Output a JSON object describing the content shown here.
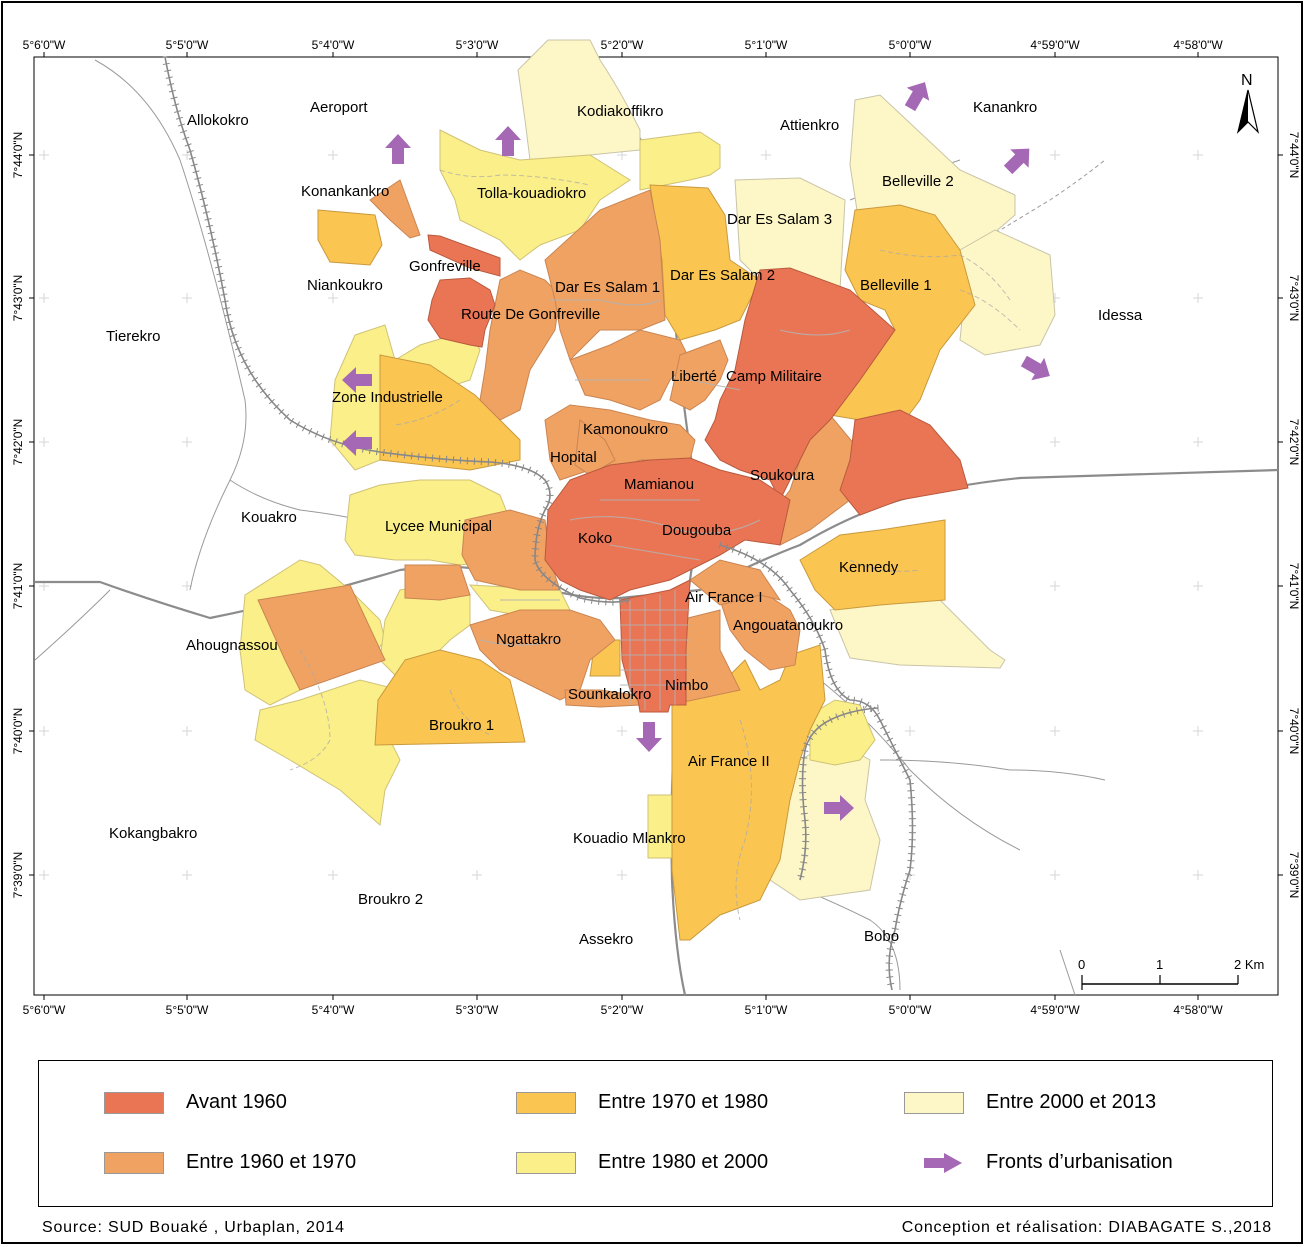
{
  "colors": {
    "avant_1960": "#ea7554",
    "1960_1970": "#f0a263",
    "1970_1980": "#fbc552",
    "1980_2000": "#fbef8a",
    "2000_2013": "#fdf6c6",
    "fronts": "#a468b4",
    "roads": "#9a9a9a",
    "rail": "#8a8a8a"
  },
  "axis": {
    "lon_labels": [
      "5°6'0\"W",
      "5°5'0\"W",
      "5°4'0\"W",
      "5°3'0\"W",
      "5°2'0\"W",
      "5°1'0\"W",
      "5°0'0\"W",
      "4°59'0\"W",
      "4°58'0\"W"
    ],
    "lat_labels": [
      "7°44'0\"N",
      "7°43'0\"N",
      "7°42'0\"N",
      "7°41'0\"N",
      "7°40'0\"N",
      "7°39'0\"N"
    ]
  },
  "places": {
    "allokokro": "Allokokro",
    "aeroport": "Aeroport",
    "kodiakoffikro": "Kodiakoffikro",
    "attienkro": "Attienkro",
    "kanankro": "Kanankro",
    "konankankro": "Konankankro",
    "tolla": "Tolla-kouadiokro",
    "belleville2": "Belleville 2",
    "dar3": "Dar Es Salam 3",
    "niankoukro": "Niankoukro",
    "gonfreville": "Gonfreville",
    "dar1": "Dar Es Salam 1",
    "dar2": "Dar Es Salam 2",
    "belleville1": "Belleville 1",
    "route_gonfreville": "Route De Gonfreville",
    "idessa": "Idessa",
    "tierekro": "Tierekro",
    "liberte": "Liberté",
    "camp_militaire": "Camp Militaire",
    "zone_industrielle": "Zone Industrielle",
    "kamonoukro": "Kamonoukro",
    "hopital": "Hopital",
    "soukoura": "Soukoura",
    "mamianou": "Mamianou",
    "kouakro": "Kouakro",
    "lycee": "Lycee Municipal",
    "dougouba": "Dougouba",
    "koko": "Koko",
    "kennedy": "Kennedy",
    "air_france_1": "Air France I",
    "ahougnassou": "Ahougnassou",
    "angouatanoukro": "Angouatanoukro",
    "ngattakro": "Ngattakro",
    "nimbo": "Nimbo",
    "sounkalokro": "Sounkalokro",
    "broukro1": "Broukro 1",
    "air_france_2": "Air France II",
    "kokangbakro": "Kokangbakro",
    "kouadio_mlankro": "Kouadio Mlankro",
    "broukro2": "Broukro 2",
    "assekro": "Assekro",
    "bobo": "Bobo"
  },
  "north_label": "N",
  "scale": {
    "labels": [
      "0",
      "1",
      "2 Km"
    ]
  },
  "legend": {
    "avant_1960": "Avant 1960",
    "1960_1970": "Entre 1960 et 1970",
    "1970_1980": "Entre 1970 et 1980",
    "1980_2000": "Entre 1980 et 2000",
    "2000_2013": "Entre 2000 et 2013",
    "fronts": "Fronts d’urbanisation"
  },
  "footer": {
    "source": "Source: SUD Bouaké , Urbaplan, 2014",
    "credit": "Conception et réalisation: DIABAGATE S.,2018"
  }
}
